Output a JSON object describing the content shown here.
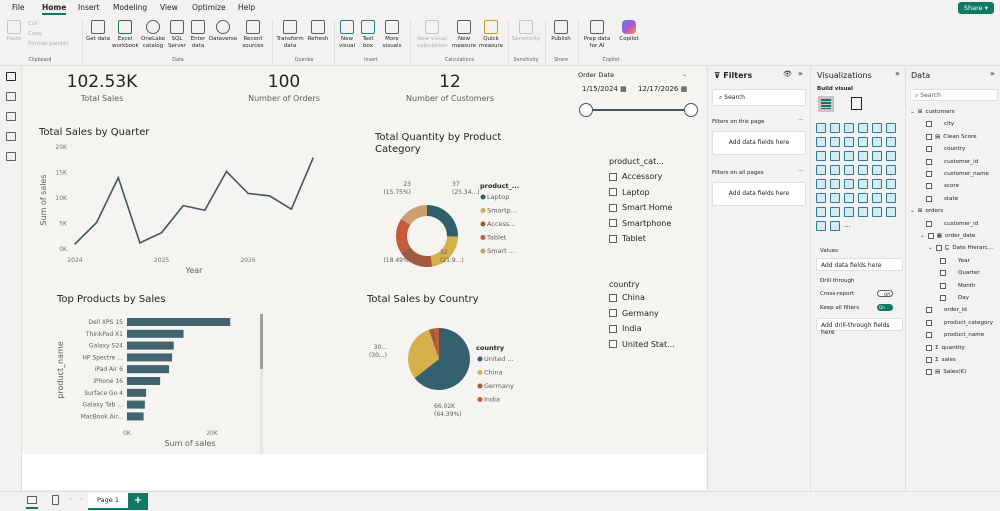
{
  "menu": {
    "tabs": [
      "File",
      "Home",
      "Insert",
      "Modeling",
      "View",
      "Optimize",
      "Help"
    ],
    "active": "Home",
    "share": "Share"
  },
  "ribbon": {
    "clipboard": {
      "paste": "Paste",
      "cut": "Cut",
      "copy": "Copy",
      "format_painter": "Format painter",
      "group": "Clipboard"
    },
    "data": {
      "items": [
        "Get data",
        "Excel workbook",
        "OneLake catalog",
        "SQL Server",
        "Enter data",
        "Dataverse",
        "Recent sources"
      ],
      "group": "Data"
    },
    "queries": {
      "items": [
        "Transform data",
        "Refresh"
      ],
      "group": "Queries"
    },
    "insert": {
      "items": [
        "New visual",
        "Text box",
        "More visuals"
      ],
      "group": "Insert"
    },
    "calculations": {
      "items": [
        "New visual calculation",
        "New measure",
        "Quick measure"
      ],
      "group": "Calculations"
    },
    "sensitivity": {
      "items": [
        "Sensitivity"
      ],
      "group": "Sensitivity"
    },
    "share": {
      "items": [
        "Publish"
      ],
      "group": "Share"
    },
    "copilot": {
      "items": [
        "Prep data for AI",
        "Copilot"
      ],
      "group": "Copilot"
    }
  },
  "kpis": [
    {
      "value": "102.53K",
      "label": "Total Sales"
    },
    {
      "value": "100",
      "label": "Number of Orders"
    },
    {
      "value": "12",
      "label": "Number of Customers"
    }
  ],
  "date_slicer": {
    "title": "Order Date",
    "start": "1/15/2024",
    "end": "12/17/2026",
    "range_fraction": [
      0,
      1
    ]
  },
  "category_slicer": {
    "title": "product_cat...",
    "items": [
      "Accessory",
      "Laptop",
      "Smart Home",
      "Smartphone",
      "Tablet"
    ]
  },
  "country_slicer": {
    "title": "country",
    "items": [
      "China",
      "Germany",
      "India",
      "United Stat..."
    ]
  },
  "chart_data": [
    {
      "type": "line",
      "title": "Total Sales by Quarter",
      "xlabel": "Year",
      "ylabel": "Sum of sales",
      "x": [
        "2024 Q1",
        "2024 Q2",
        "2024 Q3",
        "2024 Q4",
        "2025 Q1",
        "2025 Q2",
        "2025 Q3",
        "2025 Q4",
        "2026 Q1",
        "2026 Q2",
        "2026 Q3",
        "2026 Q4"
      ],
      "x_ticks": [
        "2024",
        "2025",
        "2026"
      ],
      "y_ticks": [
        "0K",
        "5K",
        "10K",
        "15K",
        "20K"
      ],
      "ylim": [
        0,
        20000
      ],
      "values": [
        1000,
        5200,
        14000,
        1200,
        3200,
        8500,
        7600,
        15200,
        10900,
        10400,
        7800,
        17800
      ],
      "color": "#41595e"
    },
    {
      "type": "pie",
      "subtype": "donut",
      "title": "Total Quantity by Product Category",
      "legend_title": "product_...",
      "legend": [
        "Laptop",
        "Smartp...",
        "Access...",
        "Tablet",
        "Smart ..."
      ],
      "categories": [
        "Laptop",
        "Smartphone",
        "Accessory",
        "Tablet",
        "Smart Home"
      ],
      "values": [
        37,
        32,
        27,
        27,
        23
      ],
      "colors": [
        "#2f5f6b",
        "#d6b04a",
        "#a45a3c",
        "#c65a3a",
        "#c9a070"
      ],
      "data_labels": [
        {
          "value": "37",
          "pct": "(25.34...)"
        },
        {
          "value": "32",
          "pct": "(21.9...)"
        },
        {
          "value": "27",
          "pct": "(18.49%)"
        },
        {
          "value": "23",
          "pct": "(15.75%)"
        }
      ],
      "legend_position": "right"
    },
    {
      "type": "bar",
      "orientation": "horizontal",
      "title": "Top Products by Sales",
      "xlabel": "Sum of sales",
      "ylabel": "product_name",
      "categories": [
        "Dell XPS 15",
        "ThinkPad X1",
        "Galaxy S24",
        "HP Spectre ...",
        "iPad Air 6",
        "iPhone 16",
        "Surface Go 4",
        "Galaxy Tab ...",
        "MacBook Air..."
      ],
      "values": [
        24300,
        13300,
        11000,
        10600,
        9900,
        7800,
        4500,
        4200,
        3900
      ],
      "x_ticks": [
        "0K",
        "20K"
      ],
      "xlim": [
        0,
        26000
      ],
      "color": "#41646e"
    },
    {
      "type": "pie",
      "title": "Total Sales by Country",
      "legend_title": "country",
      "legend": [
        "United ...",
        "China",
        "Germany",
        "India"
      ],
      "categories": [
        "United States",
        "China",
        "Germany",
        "India"
      ],
      "values": [
        66020,
        31000,
        3000,
        2500
      ],
      "colors": [
        "#35606e",
        "#d6b04a",
        "#a45a3c",
        "#c65a3a"
      ],
      "data_labels": [
        {
          "value": "66.02K",
          "pct": "(64.39%)"
        },
        {
          "value": "30...",
          "pct": "(30...)"
        }
      ],
      "legend_position": "right"
    }
  ],
  "filters": {
    "title": "Filters",
    "search": "Search",
    "this_page": "Filters on this page",
    "all_pages": "Filters on all pages",
    "add": "Add data fields here"
  },
  "visualizations": {
    "title": "Visualizations",
    "build": "Build visual",
    "values": "Values",
    "add_values": "Add data fields here",
    "drill": "Drill through",
    "cross_report": "Cross-report",
    "cross_state": "Off",
    "keep": "Keep all filters",
    "keep_state": "On",
    "add_drill": "Add drill-through fields here",
    "more": "..."
  },
  "data_pane": {
    "title": "Data",
    "search": "Search",
    "tables": [
      {
        "name": "customers",
        "fields": [
          "city",
          "Clean Score",
          "country",
          "customer_id",
          "customer_name",
          "score",
          "state"
        ]
      },
      {
        "name": "orders",
        "fields": [
          "customer_id",
          "order_date",
          "Date Hierarc...",
          "Year",
          "Quarter",
          "Month",
          "Day",
          "order_id",
          "product_category",
          "product_name",
          "quantity",
          "sales",
          "Sales(K)"
        ]
      }
    ]
  },
  "pages": {
    "tabs": [
      "Page 1"
    ],
    "add": "+"
  }
}
